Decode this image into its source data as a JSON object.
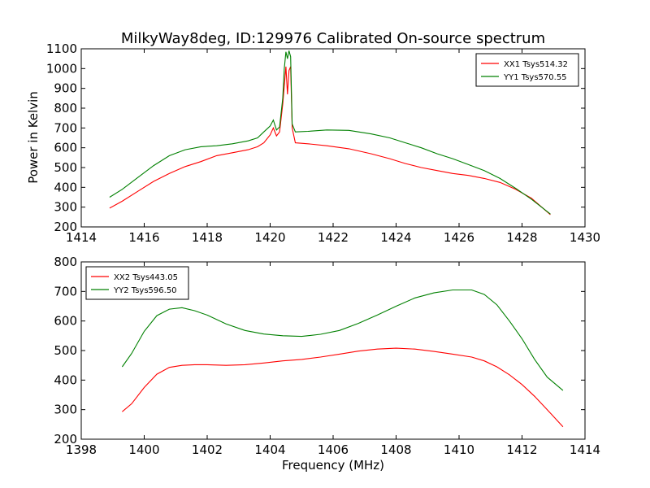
{
  "figure": {
    "title": "MilkyWay8deg, ID:129976 Calibrated On-source spectrum",
    "ylabel": "Power in Kelvin",
    "xlabel": "Frequency (MHz)"
  },
  "chart_data": [
    {
      "type": "line",
      "title": "MilkyWay8deg, ID:129976 Calibrated On-source spectrum",
      "xlabel": "",
      "ylabel": "Power in Kelvin",
      "xlim": [
        1414,
        1430
      ],
      "ylim": [
        200,
        1100
      ],
      "xticks": [
        1414,
        1416,
        1418,
        1420,
        1422,
        1424,
        1426,
        1428,
        1430
      ],
      "yticks": [
        200,
        300,
        400,
        500,
        600,
        700,
        800,
        900,
        1000,
        1100
      ],
      "grid": false,
      "legend_position": "top-right",
      "series": [
        {
          "name": "XX1 Tsys514.32",
          "color": "#ff0000",
          "points": [
            [
              1414.9,
              295
            ],
            [
              1415.3,
              330
            ],
            [
              1415.8,
              380
            ],
            [
              1416.3,
              430
            ],
            [
              1416.8,
              470
            ],
            [
              1417.3,
              505
            ],
            [
              1417.8,
              530
            ],
            [
              1418.3,
              560
            ],
            [
              1418.8,
              575
            ],
            [
              1419.3,
              590
            ],
            [
              1419.6,
              605
            ],
            [
              1419.8,
              625
            ],
            [
              1420.0,
              665
            ],
            [
              1420.1,
              700
            ],
            [
              1420.2,
              660
            ],
            [
              1420.3,
              680
            ],
            [
              1420.4,
              820
            ],
            [
              1420.5,
              1010
            ],
            [
              1420.55,
              870
            ],
            [
              1420.6,
              990
            ],
            [
              1420.65,
              1010
            ],
            [
              1420.7,
              700
            ],
            [
              1420.8,
              625
            ],
            [
              1421.2,
              620
            ],
            [
              1421.8,
              610
            ],
            [
              1422.5,
              595
            ],
            [
              1423.2,
              570
            ],
            [
              1423.8,
              545
            ],
            [
              1424.3,
              520
            ],
            [
              1424.8,
              500
            ],
            [
              1425.3,
              485
            ],
            [
              1425.8,
              470
            ],
            [
              1426.3,
              460
            ],
            [
              1426.8,
              445
            ],
            [
              1427.3,
              425
            ],
            [
              1427.8,
              390
            ],
            [
              1428.3,
              345
            ],
            [
              1428.9,
              262
            ]
          ]
        },
        {
          "name": "YY1 Tsys570.55",
          "color": "#008000",
          "points": [
            [
              1414.9,
              350
            ],
            [
              1415.3,
              390
            ],
            [
              1415.8,
              450
            ],
            [
              1416.3,
              510
            ],
            [
              1416.8,
              560
            ],
            [
              1417.3,
              590
            ],
            [
              1417.8,
              605
            ],
            [
              1418.3,
              610
            ],
            [
              1418.8,
              620
            ],
            [
              1419.3,
              635
            ],
            [
              1419.6,
              650
            ],
            [
              1419.8,
              680
            ],
            [
              1420.0,
              710
            ],
            [
              1420.1,
              740
            ],
            [
              1420.2,
              690
            ],
            [
              1420.3,
              705
            ],
            [
              1420.4,
              850
            ],
            [
              1420.45,
              1000
            ],
            [
              1420.5,
              1085
            ],
            [
              1420.55,
              1050
            ],
            [
              1420.6,
              1090
            ],
            [
              1420.65,
              1060
            ],
            [
              1420.7,
              720
            ],
            [
              1420.8,
              680
            ],
            [
              1421.2,
              683
            ],
            [
              1421.8,
              690
            ],
            [
              1422.5,
              688
            ],
            [
              1423.2,
              670
            ],
            [
              1423.8,
              650
            ],
            [
              1424.3,
              625
            ],
            [
              1424.8,
              600
            ],
            [
              1425.3,
              570
            ],
            [
              1425.8,
              545
            ],
            [
              1426.3,
              515
            ],
            [
              1426.8,
              485
            ],
            [
              1427.3,
              445
            ],
            [
              1427.8,
              395
            ],
            [
              1428.3,
              340
            ],
            [
              1428.9,
              265
            ]
          ]
        }
      ]
    },
    {
      "type": "line",
      "title": "",
      "xlabel": "Frequency (MHz)",
      "ylabel": "",
      "xlim": [
        1398,
        1414
      ],
      "ylim": [
        200,
        800
      ],
      "xticks": [
        1398,
        1400,
        1402,
        1404,
        1406,
        1408,
        1410,
        1412,
        1414
      ],
      "yticks": [
        200,
        300,
        400,
        500,
        600,
        700,
        800
      ],
      "grid": false,
      "legend_position": "top-left",
      "series": [
        {
          "name": "XX2 Tsys443.05",
          "color": "#ff0000",
          "points": [
            [
              1399.3,
              293
            ],
            [
              1399.6,
              320
            ],
            [
              1400.0,
              375
            ],
            [
              1400.4,
              420
            ],
            [
              1400.8,
              443
            ],
            [
              1401.2,
              450
            ],
            [
              1401.6,
              452
            ],
            [
              1402.0,
              452
            ],
            [
              1402.6,
              450
            ],
            [
              1403.2,
              452
            ],
            [
              1403.8,
              458
            ],
            [
              1404.4,
              465
            ],
            [
              1405.0,
              470
            ],
            [
              1405.6,
              478
            ],
            [
              1406.2,
              488
            ],
            [
              1406.8,
              498
            ],
            [
              1407.4,
              505
            ],
            [
              1408.0,
              508
            ],
            [
              1408.6,
              505
            ],
            [
              1409.2,
              497
            ],
            [
              1409.8,
              488
            ],
            [
              1410.4,
              478
            ],
            [
              1410.8,
              465
            ],
            [
              1411.2,
              445
            ],
            [
              1411.6,
              418
            ],
            [
              1412.0,
              385
            ],
            [
              1412.4,
              345
            ],
            [
              1412.8,
              300
            ],
            [
              1413.3,
              242
            ]
          ]
        },
        {
          "name": "YY2 Tsys596.50",
          "color": "#008000",
          "points": [
            [
              1399.3,
              445
            ],
            [
              1399.6,
              490
            ],
            [
              1400.0,
              565
            ],
            [
              1400.4,
              618
            ],
            [
              1400.8,
              640
            ],
            [
              1401.2,
              645
            ],
            [
              1401.6,
              635
            ],
            [
              1402.0,
              620
            ],
            [
              1402.6,
              590
            ],
            [
              1403.2,
              568
            ],
            [
              1403.8,
              556
            ],
            [
              1404.4,
              550
            ],
            [
              1405.0,
              548
            ],
            [
              1405.6,
              555
            ],
            [
              1406.2,
              568
            ],
            [
              1406.8,
              592
            ],
            [
              1407.4,
              620
            ],
            [
              1408.0,
              650
            ],
            [
              1408.6,
              678
            ],
            [
              1409.2,
              695
            ],
            [
              1409.8,
              705
            ],
            [
              1410.4,
              705
            ],
            [
              1410.8,
              690
            ],
            [
              1411.2,
              655
            ],
            [
              1411.6,
              600
            ],
            [
              1412.0,
              540
            ],
            [
              1412.4,
              470
            ],
            [
              1412.8,
              410
            ],
            [
              1413.3,
              365
            ]
          ]
        }
      ]
    }
  ]
}
